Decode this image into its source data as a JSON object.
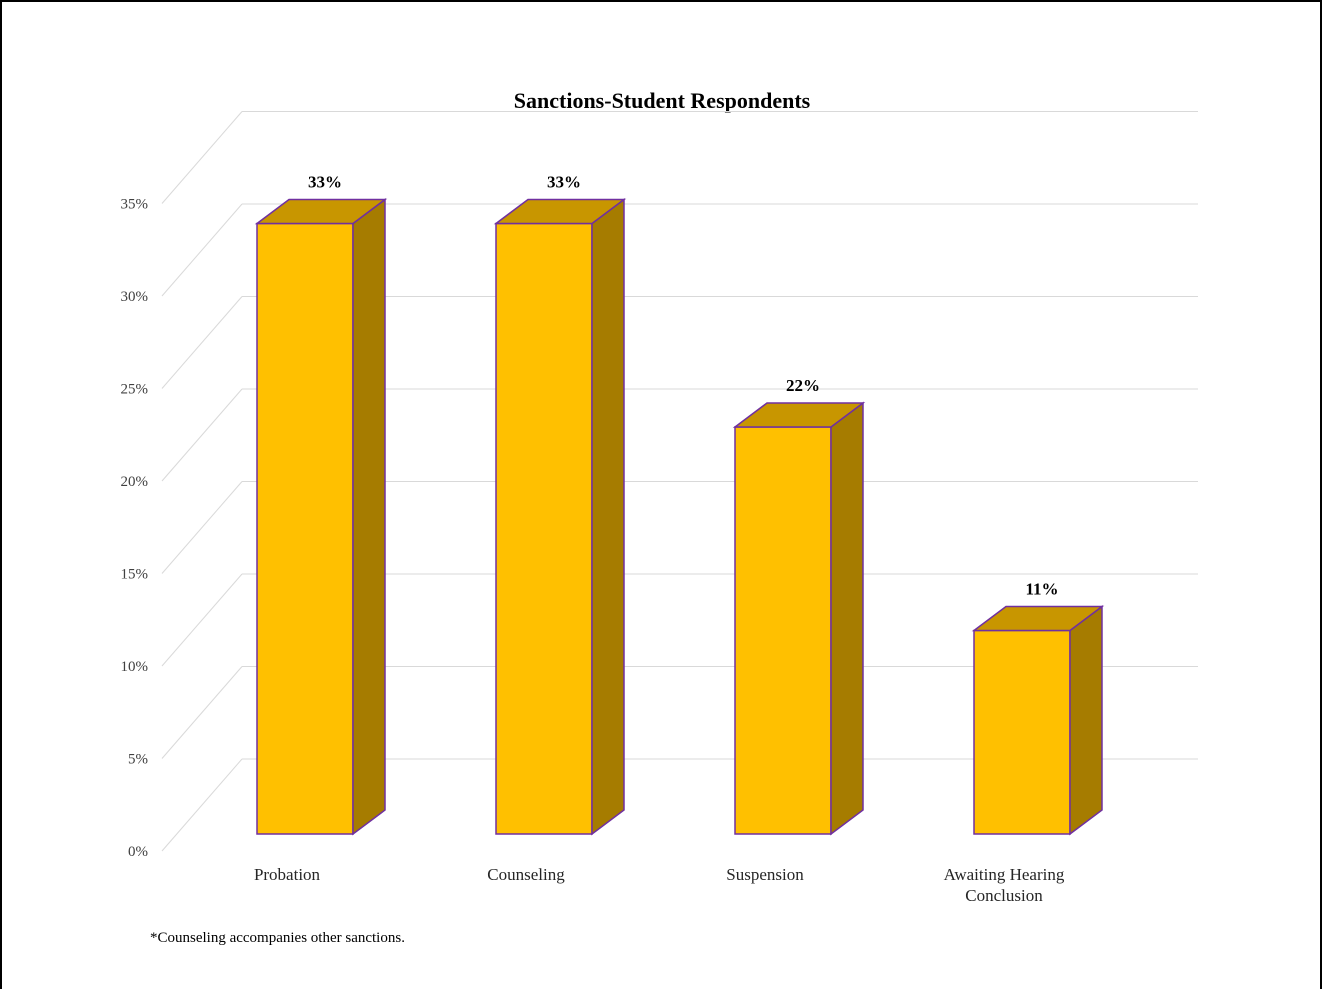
{
  "chart_data": {
    "type": "bar",
    "title": "Sanctions-Student Respondents",
    "categories": [
      "Probation",
      "Counseling",
      "Suspension",
      "Awaiting Hearing Conclusion"
    ],
    "category_lines": [
      [
        "Probation"
      ],
      [
        "Counseling"
      ],
      [
        "Suspension"
      ],
      [
        "Awaiting Hearing",
        "Conclusion"
      ]
    ],
    "values": [
      33,
      33,
      22,
      11
    ],
    "value_labels": [
      "33%",
      "33%",
      "22%",
      "11%"
    ],
    "ylim": [
      0,
      35
    ],
    "yticks": [
      0,
      5,
      10,
      15,
      20,
      25,
      30,
      35
    ],
    "ytick_labels": [
      "0%",
      "5%",
      "10%",
      "15%",
      "20%",
      "25%",
      "30%",
      "35%"
    ],
    "xlabel": "",
    "ylabel": "",
    "grid": true,
    "style": "3d-column",
    "colors": {
      "front": "#FFC000",
      "top": "#C89600",
      "side": "#A67C00",
      "edge": "#7030A0"
    }
  },
  "footnote": "*Counseling accompanies other sanctions."
}
